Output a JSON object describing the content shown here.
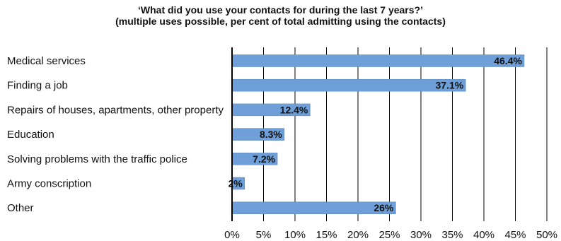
{
  "chart_data": {
    "type": "bar",
    "orientation": "horizontal",
    "title_line1": "‘What did you use your contacts for during the last 7 years?’",
    "title_line2": "(multiple uses possible, per cent of total admitting using the contacts)",
    "categories": [
      "Medical services",
      "Finding a job",
      "Repairs of houses, apartments, other property",
      "Education",
      "Solving problems with the traffic police",
      "Army conscription",
      "Other"
    ],
    "values": [
      46.4,
      37.1,
      12.4,
      8.3,
      7.2,
      2,
      26
    ],
    "value_labels": [
      "46.4%",
      "37.1%",
      "12.4%",
      "8.3%",
      "7.2%",
      "2%",
      "26%"
    ],
    "xlim": [
      0,
      50
    ],
    "x_ticks": [
      "0%",
      "5%",
      "10%",
      "15%",
      "20%",
      "25%",
      "30%",
      "35%",
      "40%",
      "45%",
      "50%"
    ],
    "grid": "vertical",
    "bar_color": "#6f9fd8",
    "bar_border_color": "#5a86bd"
  }
}
